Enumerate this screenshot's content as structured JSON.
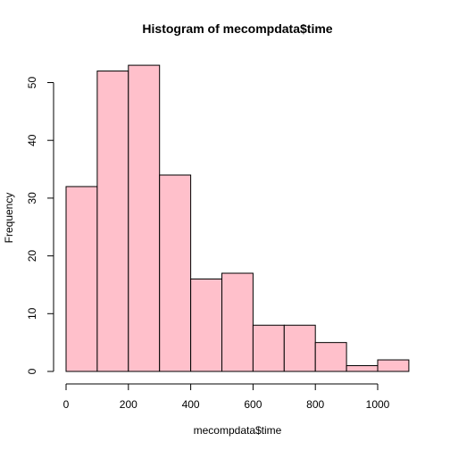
{
  "chart_data": {
    "type": "bar",
    "title": "Histogram of mecompdata$time",
    "xlabel": "mecompdata$time",
    "ylabel": "Frequency",
    "bins": [
      {
        "x0": 0,
        "x1": 100,
        "count": 32
      },
      {
        "x0": 100,
        "x1": 200,
        "count": 52
      },
      {
        "x0": 200,
        "x1": 300,
        "count": 53
      },
      {
        "x0": 300,
        "x1": 400,
        "count": 34
      },
      {
        "x0": 400,
        "x1": 500,
        "count": 16
      },
      {
        "x0": 500,
        "x1": 600,
        "count": 17
      },
      {
        "x0": 600,
        "x1": 700,
        "count": 8
      },
      {
        "x0": 700,
        "x1": 800,
        "count": 8
      },
      {
        "x0": 800,
        "x1": 900,
        "count": 5
      },
      {
        "x0": 900,
        "x1": 1000,
        "count": 1
      },
      {
        "x0": 1000,
        "x1": 1100,
        "count": 2
      }
    ],
    "xticks": [
      0,
      200,
      400,
      600,
      800,
      1000
    ],
    "yticks": [
      0,
      10,
      20,
      30,
      40,
      50
    ],
    "xlim": [
      0,
      1000
    ],
    "ylim": [
      0,
      50
    ],
    "bar_color": "#ffc0cb",
    "grid": false,
    "legend": "none"
  }
}
